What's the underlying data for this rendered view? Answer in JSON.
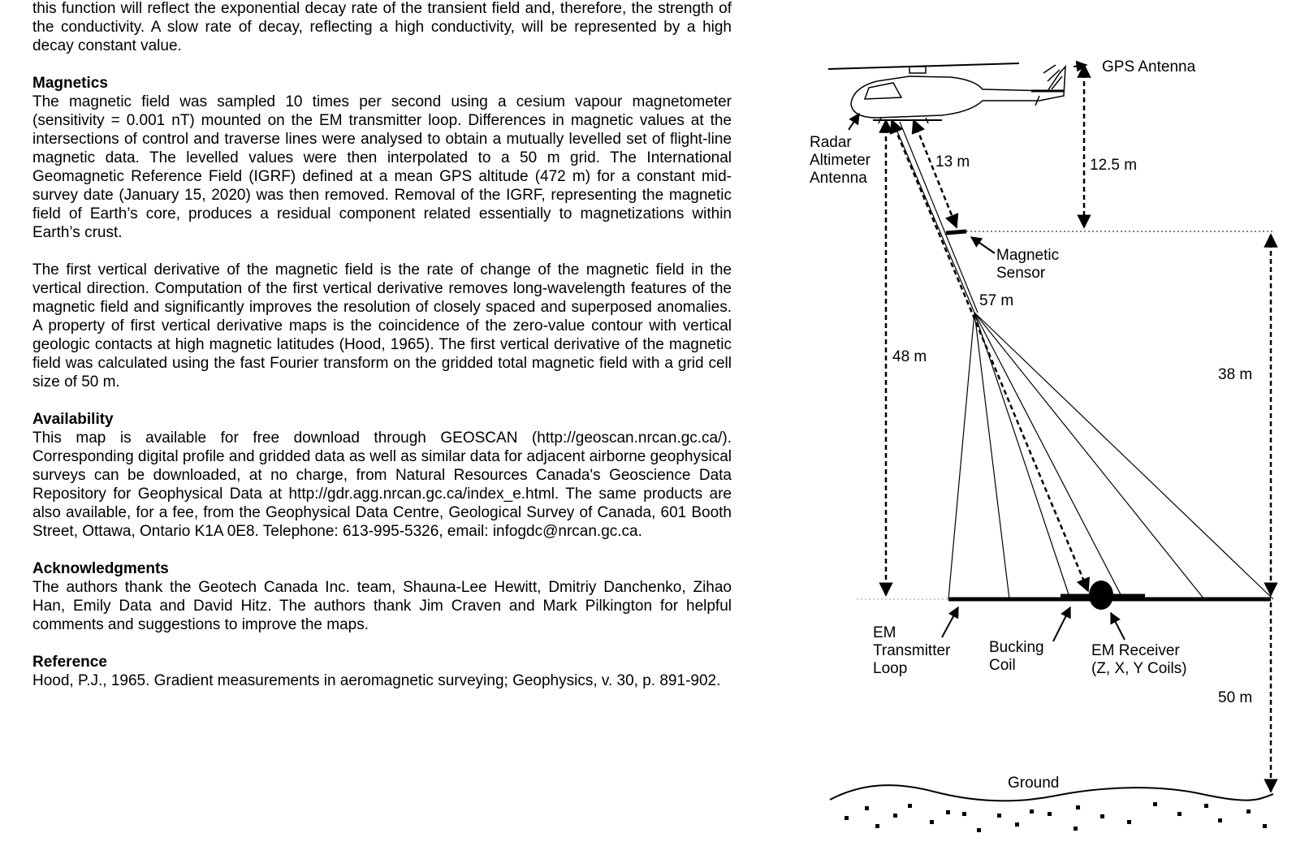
{
  "text": {
    "intro": "this function will reflect the exponential decay rate of the transient field and, therefore, the strength of the conductivity.  A slow rate of decay, reflecting a high conductivity, will be represented by a high decay constant value.",
    "magnetics": {
      "heading": "Magnetics",
      "paragraphs": [
        "The magnetic field was sampled 10 times per second using a cesium vapour magnetometer (sensitivity = 0.001 nT) mounted on the EM transmitter loop.  Differences in magnetic values at the intersections of control and traverse lines were analysed to obtain a mutually levelled set of flight-line magnetic data.  The levelled values were then interpolated to a 50 m grid.  The International Geomagnetic Reference Field (IGRF) defined at a mean GPS altitude (472 m) for a constant mid-survey date (January 15, 2020) was then removed.  Removal of the IGRF, representing the magnetic field of Earth’s core, produces a residual component related essentially to magnetizations within Earth’s crust.",
        "The first vertical derivative of the magnetic field is the rate of change of the magnetic field in the vertical direction.  Computation of the first vertical derivative removes long-wavelength features of the magnetic field and significantly improves the resolution of closely spaced and superposed anomalies.  A property of first vertical derivative maps is the coincidence of the zero-value contour with vertical geologic contacts at high magnetic latitudes (Hood, 1965).  The first vertical derivative of the magnetic field was calculated using the fast Fourier transform on the gridded total magnetic field with a grid cell size of 50 m."
      ]
    },
    "availability": {
      "heading": "Availability",
      "paragraph": "This map is available for free download through GEOSCAN (http://geoscan.nrcan.gc.ca/). Corresponding digital profile and gridded data as well as similar data for adjacent airborne geophysical surveys can be downloaded, at no charge, from Natural Resources Canada's Geoscience Data Repository for Geophysical Data at http://gdr.agg.nrcan.gc.ca/index_e.html. The same products are also available, for a fee, from the Geophysical Data Centre, Geological Survey of Canada, 601 Booth Street, Ottawa, Ontario K1A 0E8. Telephone: 613-995-5326, email: infogdc@nrcan.gc.ca."
    },
    "acknowledgments": {
      "heading": "Acknowledgments",
      "paragraph": "The authors thank the Geotech Canada Inc. team, Shauna-Lee Hewitt, Dmitriy Danchenko, Zihao Han, Emily Data and David Hitz. The authors thank Jim Craven and Mark Pilkington for helpful comments and suggestions to improve the maps."
    },
    "reference": {
      "heading": "Reference",
      "paragraph": "Hood, P.J., 1965. Gradient measurements in aeromagnetic surveying; Geophysics, v. 30, p. 891-902."
    }
  },
  "diagram": {
    "gps_antenna": [
      "GPS Antenna"
    ],
    "radar_altimeter": [
      "Radar",
      "Altimeter",
      "Antenna"
    ],
    "dist_sensor": [
      "13 m"
    ],
    "dist_gps": [
      "12.5 m"
    ],
    "magnetic_sensor": [
      "Magnetic",
      "Sensor"
    ],
    "dist_cable": [
      "57 m"
    ],
    "dist_loop": [
      "48 m"
    ],
    "dist_sensor_loop": [
      "38 m"
    ],
    "em_transmitter": [
      "EM",
      "Transmitter",
      "Loop"
    ],
    "bucking_coil": [
      "Bucking",
      "Coil"
    ],
    "em_receiver": [
      "EM Receiver",
      "(Z, X, Y Coils)"
    ],
    "dist_ground": [
      "50 m"
    ],
    "ground": [
      "Ground"
    ]
  }
}
